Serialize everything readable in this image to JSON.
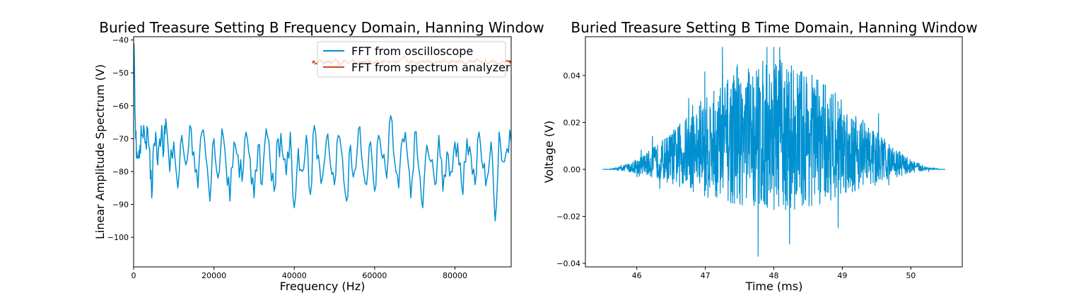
{
  "chart_data": [
    {
      "type": "line",
      "title": "Buried Treasure Setting B Frequency Domain, Hanning Window",
      "xlabel": "Frequency (Hz)",
      "ylabel": "Linear Amplitude Spectrum (V)",
      "xlim": [
        0,
        94000
      ],
      "ylim": [
        -109,
        -39
      ],
      "xticks": [
        0,
        20000,
        40000,
        60000,
        80000
      ],
      "yticks": [
        -100,
        -90,
        -80,
        -70,
        -60,
        -50,
        -40
      ],
      "legend_position": "top-right",
      "grid": false,
      "series": [
        {
          "name": "FFT from oscilloscope",
          "color": "#0090d0",
          "x": [
            0,
            250,
            500,
            800,
            1200,
            1600,
            2000,
            2500,
            3000,
            3500,
            4000,
            4500,
            5000,
            5500,
            6000,
            6500,
            7000,
            7500,
            8000,
            9000,
            10000,
            11000,
            12000,
            13000,
            14000,
            15000,
            16000,
            17000,
            18000,
            19000,
            20000,
            21000,
            22000,
            23000,
            24000,
            25000,
            26000,
            27000,
            28000,
            29000,
            30000,
            31000,
            32000,
            33000,
            34000,
            35000,
            36000,
            37000,
            38000,
            39000,
            40000,
            41000,
            42000,
            43000,
            44000,
            45000,
            46000,
            47000,
            48000,
            49000,
            50000,
            51000,
            52000,
            53000,
            54000,
            55000,
            56000,
            57000,
            58000,
            59000,
            60000,
            61000,
            62000,
            63000,
            64000,
            65000,
            66000,
            67000,
            68000,
            69000,
            70000,
            71000,
            72000,
            73000,
            74000,
            75000,
            76000,
            77000,
            78000,
            79000,
            80000,
            81000,
            82000,
            83000,
            84000,
            85000,
            86000,
            87000,
            88000,
            89000,
            90000,
            91000,
            92000,
            93000,
            94000
          ],
          "y": [
            -41,
            -52,
            -70,
            -74,
            -76,
            -72,
            -69,
            -66,
            -71,
            -67,
            -73,
            -88,
            -72,
            -68,
            -78,
            -70,
            -66,
            -74,
            -64,
            -80,
            -71,
            -85,
            -69,
            -78,
            -66,
            -74,
            -85,
            -68,
            -76,
            -89,
            -70,
            -82,
            -67,
            -78,
            -89,
            -71,
            -75,
            -83,
            -68,
            -76,
            -88,
            -72,
            -84,
            -67,
            -77,
            -86,
            -70,
            -74,
            -81,
            -68,
            -91,
            -73,
            -80,
            -69,
            -87,
            -66,
            -75,
            -82,
            -70,
            -78,
            -84,
            -69,
            -76,
            -89,
            -72,
            -80,
            -67,
            -78,
            -84,
            -71,
            -86,
            -69,
            -76,
            -82,
            -63,
            -77,
            -85,
            -70,
            -73,
            -88,
            -68,
            -79,
            -91,
            -72,
            -77,
            -84,
            -69,
            -86,
            -74,
            -80,
            -71,
            -78,
            -87,
            -70,
            -75,
            -84,
            -68,
            -79,
            -82,
            -71,
            -95,
            -68,
            -77,
            -73,
            -71
          ]
        },
        {
          "name": "FFT from spectrum analyzer",
          "color": "#d1481a",
          "x": [
            44500,
            45500,
            46500,
            47500,
            48500,
            49500,
            50500,
            51500,
            52500,
            53500,
            54500,
            55500,
            56500,
            57500,
            58500,
            59500,
            60500,
            61500,
            62500,
            63500,
            64500,
            65500,
            66500,
            67500,
            68500,
            69500,
            70500,
            71500,
            72500,
            73500,
            74500,
            75500,
            76500,
            77500,
            78500,
            79500,
            80500,
            81500,
            82500,
            83500,
            84500,
            85500,
            86500,
            87500,
            88500,
            89500,
            90500,
            91500,
            92500,
            93500,
            94000
          ],
          "y": [
            -46.5,
            -47.0,
            -46.0,
            -47.2,
            -46.3,
            -46.9,
            -46.1,
            -47.3,
            -46.4,
            -46.8,
            -46.0,
            -47.1,
            -46.5,
            -46.9,
            -46.2,
            -47.2,
            -46.6,
            -46.8,
            -46.1,
            -47.0,
            -46.4,
            -46.9,
            -46.0,
            -45.0,
            -46.8,
            -46.3,
            -47.1,
            -46.5,
            -46.9,
            -46.2,
            -47.0,
            -46.6,
            -46.8,
            -46.1,
            -47.1,
            -46.4,
            -46.9,
            -46.3,
            -47.2,
            -46.5,
            -46.8,
            -46.1,
            -47.0,
            -46.4,
            -46.9,
            -46.2,
            -47.1,
            -46.6,
            -46.8,
            -46.2,
            -47.0
          ]
        }
      ]
    },
    {
      "type": "line",
      "title": "Buried Treasure Setting B Time Domain, Hanning Window",
      "xlabel": "Time (ms)",
      "ylabel": "Voltage (V)",
      "xlim": [
        45.25,
        50.75
      ],
      "ylim": [
        -0.0415,
        0.0565
      ],
      "xticks": [
        46,
        47,
        48,
        49,
        50
      ],
      "yticks": [
        -0.04,
        -0.02,
        0.0,
        0.02,
        0.04
      ],
      "xtick_labels": [
        "46",
        "47",
        "48",
        "49",
        "50"
      ],
      "ytick_labels": [
        "−0.04",
        "−0.02",
        "0.00",
        "0.02",
        "0.04"
      ],
      "grid": false,
      "series": [
        {
          "color": "#0090d0",
          "waveform": {
            "t_start": 45.5,
            "t_end": 50.5,
            "center": 48.0,
            "peak_amplitude": 0.052,
            "min_value": -0.037,
            "envelope": "hanning"
          }
        }
      ]
    }
  ]
}
